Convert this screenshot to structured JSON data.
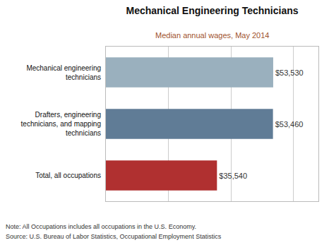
{
  "chart_data": {
    "type": "bar",
    "orientation": "horizontal",
    "title": "Mechanical Engineering Technicians",
    "subtitle": "Median annual wages, May 2014",
    "categories": [
      "Total, all occupations",
      "Drafters, engineering\ntechnicians, and mapping\ntechnicians",
      "Mechanical engineering\ntechnicians"
    ],
    "values": [
      35540,
      53460,
      53530
    ],
    "value_labels": [
      "$35,540",
      "$53,460",
      "$53,530"
    ],
    "data_labels": true,
    "colors": [
      "#b03030",
      "#607c96",
      "#9ab0be"
    ],
    "xlim": [
      0,
      68000
    ],
    "xticks": [
      20000,
      40000,
      60000
    ],
    "tick_labels": "y",
    "grid": true,
    "annotations": [
      "Note: All Occupations includes all occupations in the U.S. Economy.",
      "Source: U.S. Bureau of Labor Statistics, Occupational Employment Statistics"
    ]
  }
}
